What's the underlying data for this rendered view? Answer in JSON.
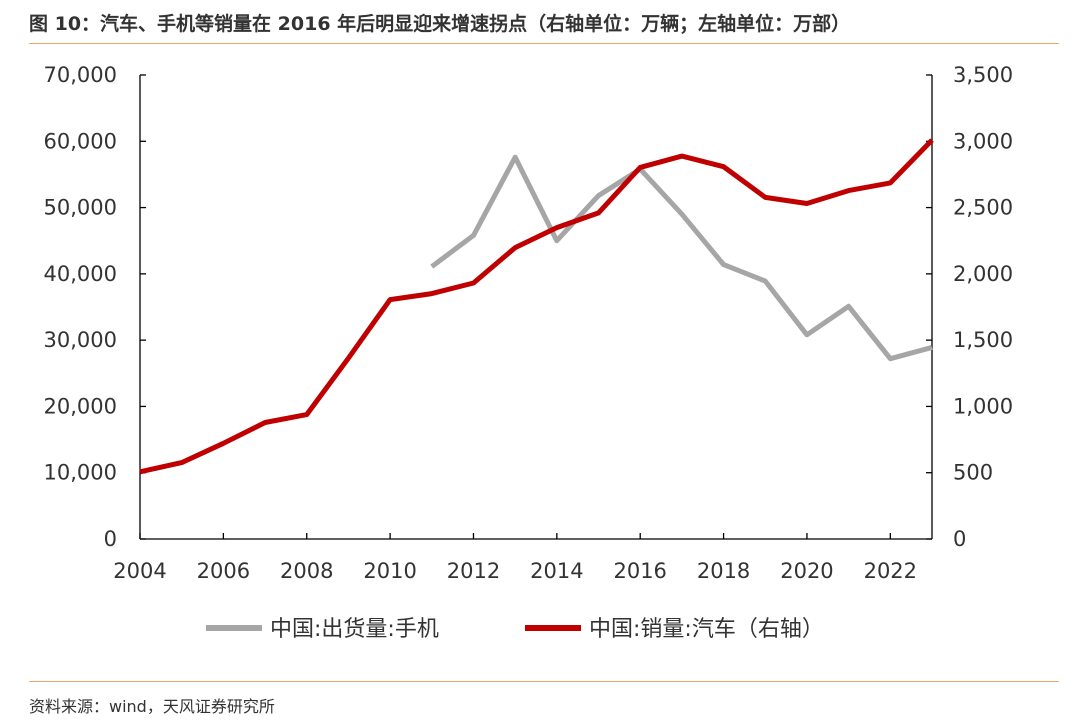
{
  "header": {
    "title": "图 10：汽车、手机等销量在 2016 年后明显迎来增速拐点（右轴单位：万辆；左轴单位：万部）"
  },
  "footer": {
    "source": "资料来源：wind，天风证券研究所"
  },
  "chart_data": {
    "type": "line",
    "title": "图 10：汽车、手机等销量在 2016 年后明显迎来增速拐点（右轴单位：万辆；左轴单位：万部）",
    "xlabel": "",
    "x_ticks": [
      "2004",
      "2006",
      "2008",
      "2010",
      "2012",
      "2014",
      "2016",
      "2018",
      "2020",
      "2022"
    ],
    "xlim": [
      2004,
      2023
    ],
    "y_left": {
      "lim": [
        0,
        70000
      ],
      "ticks": [
        "0",
        "10,000",
        "20,000",
        "30,000",
        "40,000",
        "50,000",
        "60,000",
        "70,000"
      ]
    },
    "y_right": {
      "lim": [
        0,
        3500
      ],
      "ticks": [
        "0",
        "500",
        "1,000",
        "1,500",
        "2,000",
        "2,500",
        "3,000",
        "3,500"
      ]
    },
    "grid": false,
    "legend_position": "bottom-center",
    "series": [
      {
        "name": "中国:出货量:手机",
        "axis": "left",
        "color": "#A6A6A6",
        "x": [
          2011,
          2012,
          2013,
          2014,
          2015,
          2016,
          2017,
          2018,
          2019,
          2020,
          2021,
          2022,
          2023
        ],
        "values": [
          41100,
          45800,
          57600,
          45000,
          51800,
          55800,
          49000,
          41400,
          38900,
          30800,
          35100,
          27200,
          28900
        ]
      },
      {
        "name": "中国:销量:汽车（右轴）",
        "axis": "right",
        "color": "#C00000",
        "x": [
          2004,
          2005,
          2006,
          2007,
          2008,
          2009,
          2010,
          2011,
          2012,
          2013,
          2014,
          2015,
          2016,
          2017,
          2018,
          2019,
          2020,
          2021,
          2022,
          2023
        ],
        "values": [
          507,
          576,
          722,
          879,
          938,
          1364,
          1806,
          1851,
          1931,
          2198,
          2349,
          2460,
          2803,
          2888,
          2808,
          2577,
          2531,
          2628,
          2686,
          3009
        ]
      }
    ]
  }
}
